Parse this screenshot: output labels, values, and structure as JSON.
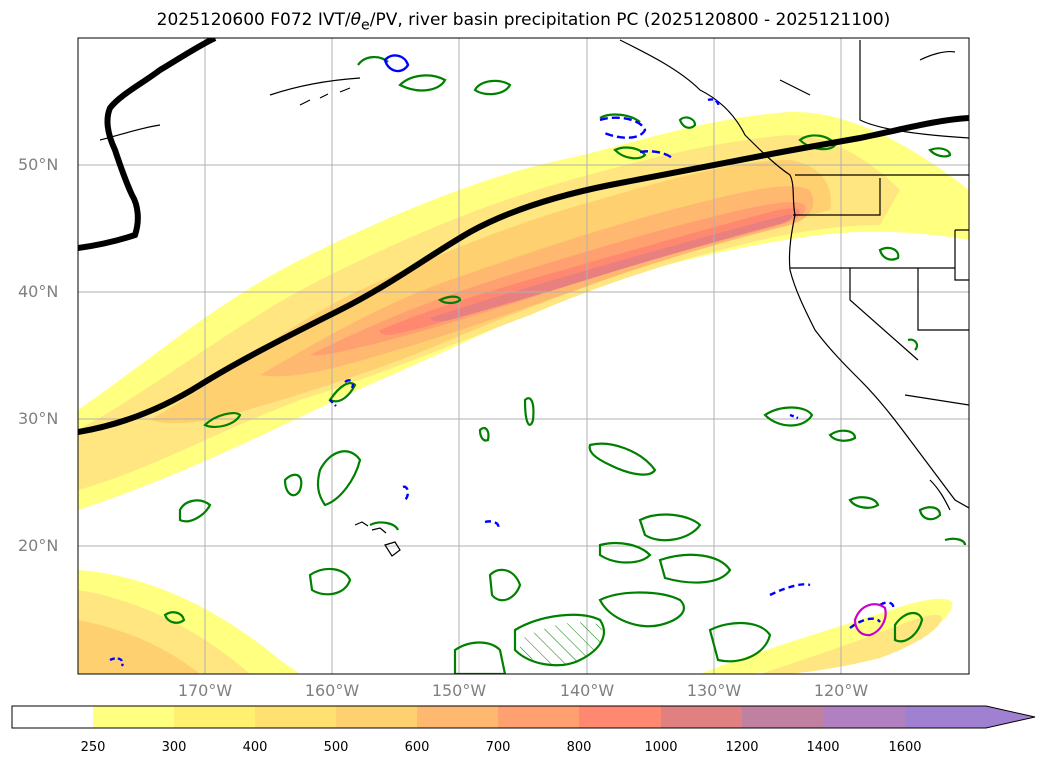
{
  "title": {
    "prefix": "2025120600 F072 IVT/",
    "theta": "θ",
    "subscript": "e",
    "suffix": "/PV, river basin precipitation PC (2025120800 - 2025121100)"
  },
  "map": {
    "lat_labels": [
      "50°N",
      "40°N",
      "30°N",
      "20°N"
    ],
    "lon_labels": [
      "170°W",
      "160°W",
      "150°W",
      "140°W",
      "130°W",
      "120°W"
    ],
    "colors": {
      "land_outline": "#000000",
      "pv_contour": "#008000",
      "theta_contour": "#0000ff",
      "precip_contour": "#cc00cc",
      "grid": "#b0b0b0",
      "label": "#808080"
    }
  },
  "colorbar": {
    "levels": [
      "250",
      "300",
      "400",
      "500",
      "600",
      "700",
      "800",
      "1000",
      "1200",
      "1400",
      "1600"
    ],
    "colors": [
      "#ffffff",
      "#ffff80",
      "#fff070",
      "#ffe070",
      "#ffd070",
      "#ffb870",
      "#ffa070",
      "#ff8870",
      "#e08080",
      "#c080a0",
      "#b080c0",
      "#a080d0"
    ]
  }
}
